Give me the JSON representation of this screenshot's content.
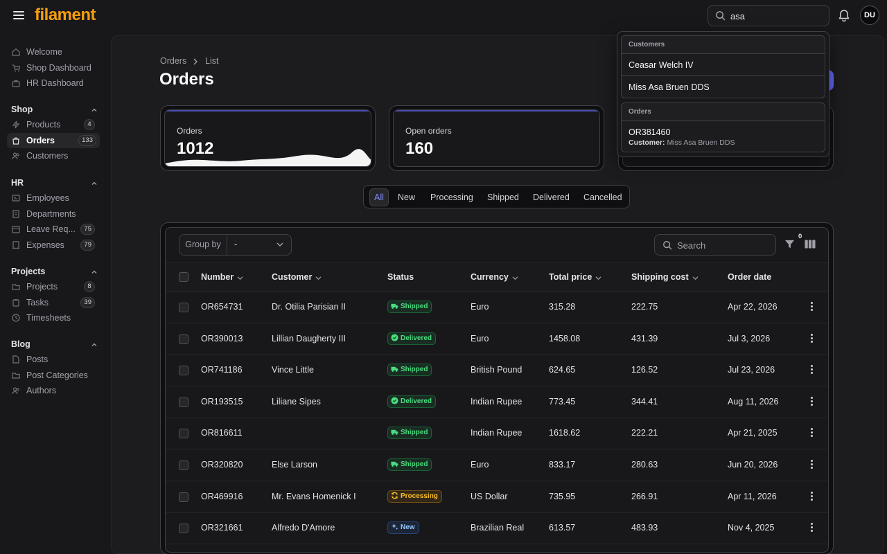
{
  "brand": "filament",
  "topbar": {
    "search_value": "asa",
    "user_initials": "DU"
  },
  "sidebar": {
    "top_items": [
      {
        "label": "Welcome"
      },
      {
        "label": "Shop Dashboard"
      },
      {
        "label": "HR Dashboard"
      }
    ],
    "groups": [
      {
        "label": "Shop",
        "items": [
          {
            "label": "Products",
            "badge": "4"
          },
          {
            "label": "Orders",
            "badge": "133",
            "active": true
          },
          {
            "label": "Customers",
            "badge": ""
          }
        ]
      },
      {
        "label": "HR",
        "items": [
          {
            "label": "Employees",
            "badge": ""
          },
          {
            "label": "Departments",
            "badge": ""
          },
          {
            "label": "Leave Req...",
            "badge": "75"
          },
          {
            "label": "Expenses",
            "badge": "79"
          }
        ]
      },
      {
        "label": "Projects",
        "items": [
          {
            "label": "Projects",
            "badge": "8"
          },
          {
            "label": "Tasks",
            "badge": "39"
          },
          {
            "label": "Timesheets",
            "badge": ""
          }
        ]
      },
      {
        "label": "Blog",
        "items": [
          {
            "label": "Posts",
            "badge": ""
          },
          {
            "label": "Post Categories",
            "badge": ""
          },
          {
            "label": "Authors",
            "badge": ""
          }
        ]
      }
    ]
  },
  "breadcrumb": {
    "parent": "Orders",
    "current": "List"
  },
  "page_title": "Orders",
  "stats": [
    {
      "label": "Orders",
      "value": "1012"
    },
    {
      "label": "Open orders",
      "value": "160"
    }
  ],
  "tabs": [
    "All",
    "New",
    "Processing",
    "Shipped",
    "Delivered",
    "Cancelled"
  ],
  "active_tab": "All",
  "toolbar": {
    "group_by_label": "Group by",
    "group_by_value": "-",
    "search_placeholder": "Search",
    "filter_count": "0"
  },
  "columns": [
    "Number",
    "Customer",
    "Status",
    "Currency",
    "Total price",
    "Shipping cost",
    "Order date"
  ],
  "rows": [
    {
      "number": "OR654731",
      "customer": "Dr. Otilia Parisian II",
      "status": "Shipped",
      "currency": "Euro",
      "total": "315.28",
      "shipping": "222.75",
      "date": "Apr 22, 2026"
    },
    {
      "number": "OR390013",
      "customer": "Lillian Daugherty III",
      "status": "Delivered",
      "currency": "Euro",
      "total": "1458.08",
      "shipping": "431.39",
      "date": "Jul 3, 2026"
    },
    {
      "number": "OR741186",
      "customer": "Vince Little",
      "status": "Shipped",
      "currency": "British Pound",
      "total": "624.65",
      "shipping": "126.52",
      "date": "Jul 23, 2026"
    },
    {
      "number": "OR193515",
      "customer": "Liliane Sipes",
      "status": "Delivered",
      "currency": "Indian Rupee",
      "total": "773.45",
      "shipping": "344.41",
      "date": "Aug 11, 2026"
    },
    {
      "number": "OR816611",
      "customer": "",
      "status": "Shipped",
      "currency": "Indian Rupee",
      "total": "1618.62",
      "shipping": "222.21",
      "date": "Apr 21, 2025"
    },
    {
      "number": "OR320820",
      "customer": "Else Larson",
      "status": "Shipped",
      "currency": "Euro",
      "total": "833.17",
      "shipping": "280.63",
      "date": "Jun 20, 2026"
    },
    {
      "number": "OR469916",
      "customer": "Mr. Evans Homenick I",
      "status": "Processing",
      "currency": "US Dollar",
      "total": "735.95",
      "shipping": "266.91",
      "date": "Apr 11, 2026"
    },
    {
      "number": "OR321661",
      "customer": "Alfredo D'Amore",
      "status": "New",
      "currency": "Brazilian Real",
      "total": "613.57",
      "shipping": "483.93",
      "date": "Nov 4, 2025"
    }
  ],
  "search_results": {
    "customers_heading": "Customers",
    "customers": [
      "Ceasar Welch IV",
      "Miss Asa Bruen DDS"
    ],
    "orders_heading": "Orders",
    "orders": [
      {
        "number": "OR381460",
        "detail_label": "Customer:",
        "detail_value": "Miss Asa Bruen DDS"
      }
    ]
  },
  "colors": {
    "accent": "#6366f1",
    "brand": "#f59e0b",
    "success": "#4ade80",
    "warning": "#fbbf24",
    "info": "#93c5fd"
  }
}
